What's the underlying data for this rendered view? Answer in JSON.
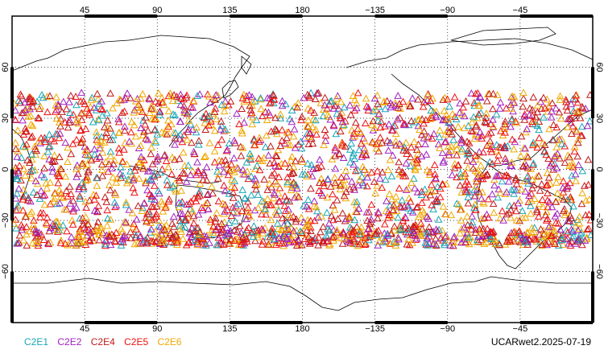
{
  "chart_data": {
    "type": "scatter",
    "projection": "equirectangular",
    "center_longitude": 180,
    "grid": true,
    "grid_style": "dotted",
    "x_ticks": [
      "45",
      "90",
      "135",
      "180",
      "−135",
      "−90",
      "−45"
    ],
    "y_ticks": [
      "60",
      "30",
      "0",
      "−30",
      "−60"
    ],
    "ylim": [
      -90,
      90
    ],
    "marker": "open-triangle",
    "lat_range_observed": [
      -45,
      45
    ],
    "series": [
      {
        "name": "C2E1",
        "color": "#1aa6b8"
      },
      {
        "name": "C2E2",
        "color": "#a020c0"
      },
      {
        "name": "C2E4",
        "color": "#c01818"
      },
      {
        "name": "C2E5",
        "color": "#ee1010"
      },
      {
        "name": "C2E6",
        "color": "#f0a800"
      }
    ]
  },
  "legend": {
    "items": [
      {
        "label": "C2E1",
        "color": "#1aa6b8"
      },
      {
        "label": "C2E2",
        "color": "#a020c0"
      },
      {
        "label": "C2E4",
        "color": "#c01818"
      },
      {
        "label": "C2E5",
        "color": "#ee1010"
      },
      {
        "label": "C2E6",
        "color": "#f0a800"
      }
    ]
  },
  "source_label": "UCARwet2.2025-07-19"
}
